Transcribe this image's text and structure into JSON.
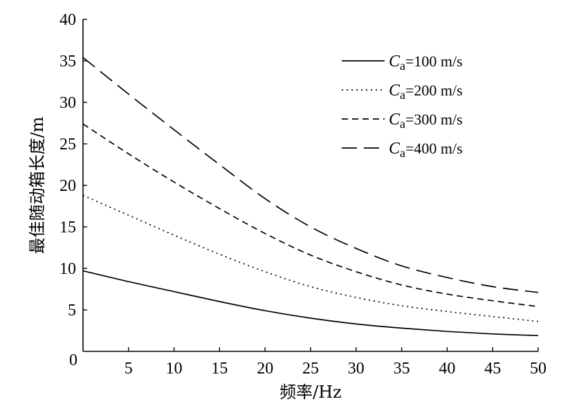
{
  "chart_data": {
    "type": "line",
    "title": "",
    "xlabel": "频率/Hz",
    "ylabel": "最佳随动箱长度/m",
    "xlim": [
      0,
      50
    ],
    "ylim": [
      0,
      40
    ],
    "x_ticks": [
      0,
      5,
      10,
      15,
      20,
      25,
      30,
      35,
      40,
      45,
      50
    ],
    "y_ticks": [
      5,
      10,
      15,
      20,
      25,
      30,
      35,
      40
    ],
    "x_tick_labels": [
      "0",
      "5",
      "10",
      "15",
      "20",
      "25",
      "30",
      "35",
      "40",
      "45",
      "50"
    ],
    "y_tick_labels": [
      "5",
      "10",
      "15",
      "20",
      "25",
      "30",
      "35",
      "40"
    ],
    "origin_label": "0",
    "grid": false,
    "legend_position": "top-right",
    "x": [
      0,
      5,
      10,
      15,
      20,
      25,
      30,
      35,
      40,
      45,
      50
    ],
    "series": [
      {
        "name_symbol": "C",
        "name_subscript": "a",
        "name_value": "=100 m/s",
        "dash": "solid",
        "values": [
          9.7,
          8.4,
          7.2,
          6.0,
          4.9,
          4.0,
          3.3,
          2.8,
          2.4,
          2.1,
          1.9
        ]
      },
      {
        "name_symbol": "C",
        "name_subscript": "a",
        "name_value": "=200 m/s",
        "dash": "dotted",
        "values": [
          18.8,
          16.4,
          14.0,
          11.7,
          9.6,
          7.8,
          6.5,
          5.5,
          4.8,
          4.2,
          3.6
        ]
      },
      {
        "name_symbol": "C",
        "name_subscript": "a",
        "name_value": "=300 m/s",
        "dash": "dashed",
        "values": [
          27.4,
          23.8,
          20.4,
          17.2,
          14.2,
          11.6,
          9.6,
          8.0,
          6.9,
          6.1,
          5.4
        ]
      },
      {
        "name_symbol": "C",
        "name_subscript": "a",
        "name_value": "=400 m/s",
        "dash": "longdash",
        "values": [
          35.4,
          31.0,
          26.7,
          22.5,
          18.4,
          15.0,
          12.4,
          10.3,
          8.9,
          7.8,
          7.1
        ]
      }
    ]
  }
}
